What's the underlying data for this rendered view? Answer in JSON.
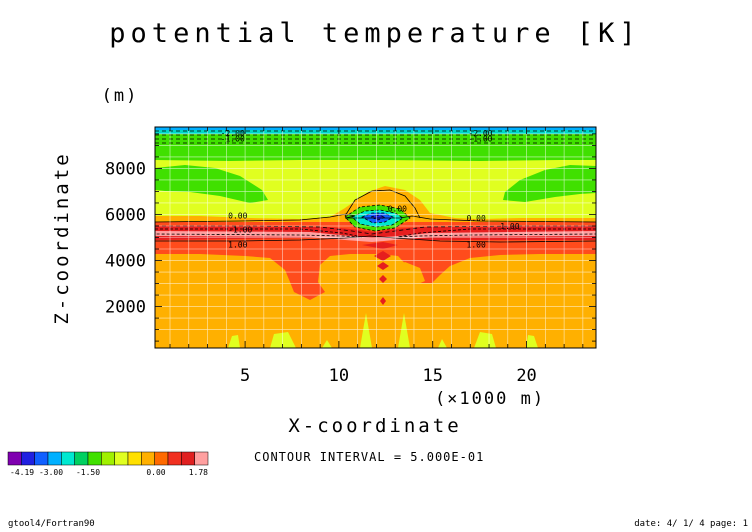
{
  "chart_data": {
    "type": "contour",
    "title": "potential temperature [K]",
    "xlabel": "X-coordinate",
    "x_unit": "(×1000 m)",
    "ylabel": "Z-coordinate",
    "y_unit": "(m)",
    "xlim": [
      0.2,
      23.7
    ],
    "ylim": [
      200,
      9800
    ],
    "x_ticks": [
      5,
      10,
      15,
      20
    ],
    "y_ticks": [
      2000,
      4000,
      6000,
      8000
    ],
    "contour_interval_text": "CONTOUR INTERVAL = 5.000E-01",
    "contour_labels": [
      {
        "text": "-2.00",
        "x": 3.7,
        "y": 9550
      },
      {
        "text": "-1.00",
        "x": 3.7,
        "y": 9300
      },
      {
        "text": "-2.00",
        "x": 16.9,
        "y": 9550
      },
      {
        "text": "-1.00",
        "x": 16.9,
        "y": 9300
      },
      {
        "text": "0.00",
        "x": 4.1,
        "y": 5950
      },
      {
        "text": "-1.00",
        "x": 4.1,
        "y": 5350
      },
      {
        "text": "1.00",
        "x": 4.1,
        "y": 4700
      },
      {
        "text": "0.00",
        "x": 12.6,
        "y": 6250
      },
      {
        "text": "0.00",
        "x": 16.8,
        "y": 5850
      },
      {
        "text": "1.00",
        "x": 18.6,
        "y": 5500
      },
      {
        "text": "1.00",
        "x": 16.8,
        "y": 4700
      }
    ],
    "colorbar": {
      "colors": [
        "#7f00b0",
        "#2020e0",
        "#1060ff",
        "#00b0ff",
        "#00e8d0",
        "#00d060",
        "#40e000",
        "#a0f000",
        "#e0ff20",
        "#ffe000",
        "#ffb000",
        "#ff6a00",
        "#f03020",
        "#e02020",
        "#ffa0a0"
      ],
      "tick_labels": [
        "-4.19",
        "-3.00",
        "-1.50",
        "0.00",
        "1.78"
      ]
    },
    "grid": true,
    "legend": "bottom-left"
  },
  "footer": {
    "left": "gtool4/Fortran90",
    "right": "date: 4/ 1/ 4 page: 1"
  }
}
